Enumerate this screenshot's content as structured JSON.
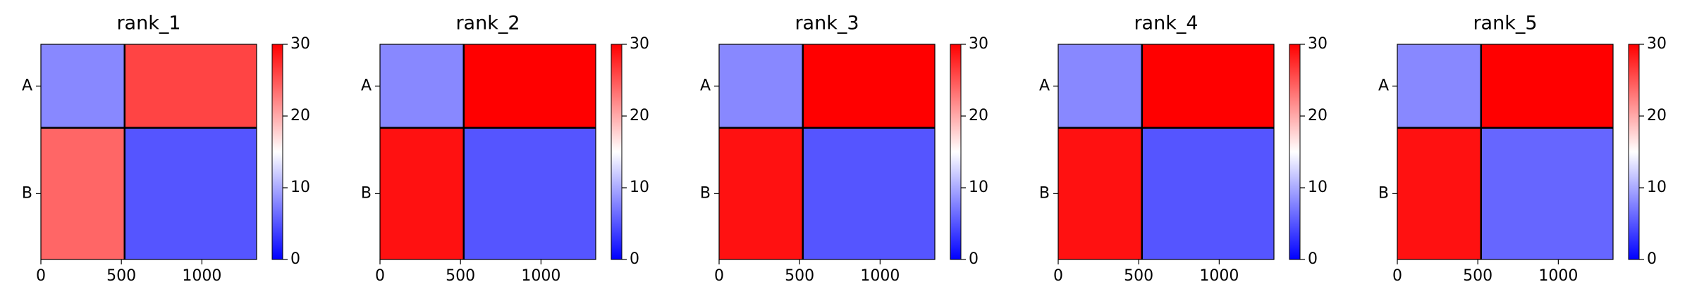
{
  "chart_data": [
    {
      "type": "heatmap",
      "title": "rank_1",
      "x_edges": [
        0,
        520,
        1340
      ],
      "y_edges": [
        0,
        520,
        1340
      ],
      "values": [
        [
          8,
          26
        ],
        [
          24,
          5
        ]
      ],
      "xlim": [
        0,
        1340
      ],
      "xticks": [
        0,
        500,
        1000
      ],
      "ylim": [
        1340,
        0
      ],
      "yticks": [
        {
          "value": 260,
          "label": "A"
        },
        {
          "value": 930,
          "label": "B"
        }
      ],
      "clim": [
        0,
        30
      ],
      "cticks": [
        0,
        10,
        20,
        30
      ],
      "cmap": [
        "#0000ff",
        "#ffffff",
        "#ff0000"
      ]
    },
    {
      "type": "heatmap",
      "title": "rank_2",
      "x_edges": [
        0,
        520,
        1340
      ],
      "y_edges": [
        0,
        520,
        1340
      ],
      "values": [
        [
          8,
          30
        ],
        [
          29,
          5
        ]
      ],
      "xlim": [
        0,
        1340
      ],
      "xticks": [
        0,
        500,
        1000
      ],
      "ylim": [
        1340,
        0
      ],
      "yticks": [
        {
          "value": 260,
          "label": "A"
        },
        {
          "value": 930,
          "label": "B"
        }
      ],
      "clim": [
        0,
        30
      ],
      "cticks": [
        0,
        10,
        20,
        30
      ],
      "cmap": [
        "#0000ff",
        "#ffffff",
        "#ff0000"
      ]
    },
    {
      "type": "heatmap",
      "title": "rank_3",
      "x_edges": [
        0,
        520,
        1340
      ],
      "y_edges": [
        0,
        520,
        1340
      ],
      "values": [
        [
          8,
          30
        ],
        [
          29,
          5
        ]
      ],
      "xlim": [
        0,
        1340
      ],
      "xticks": [
        0,
        500,
        1000
      ],
      "ylim": [
        1340,
        0
      ],
      "yticks": [
        {
          "value": 260,
          "label": "A"
        },
        {
          "value": 930,
          "label": "B"
        }
      ],
      "clim": [
        0,
        30
      ],
      "cticks": [
        0,
        10,
        20,
        30
      ],
      "cmap": [
        "#0000ff",
        "#ffffff",
        "#ff0000"
      ]
    },
    {
      "type": "heatmap",
      "title": "rank_4",
      "x_edges": [
        0,
        520,
        1340
      ],
      "y_edges": [
        0,
        520,
        1340
      ],
      "values": [
        [
          8,
          30
        ],
        [
          29,
          5
        ]
      ],
      "xlim": [
        0,
        1340
      ],
      "xticks": [
        0,
        500,
        1000
      ],
      "ylim": [
        1340,
        0
      ],
      "yticks": [
        {
          "value": 260,
          "label": "A"
        },
        {
          "value": 930,
          "label": "B"
        }
      ],
      "clim": [
        0,
        30
      ],
      "cticks": [
        0,
        10,
        20,
        30
      ],
      "cmap": [
        "#0000ff",
        "#ffffff",
        "#ff0000"
      ]
    },
    {
      "type": "heatmap",
      "title": "rank_5",
      "x_edges": [
        0,
        520,
        1340
      ],
      "y_edges": [
        0,
        520,
        1340
      ],
      "values": [
        [
          8,
          30
        ],
        [
          29,
          6
        ]
      ],
      "xlim": [
        0,
        1340
      ],
      "xticks": [
        0,
        500,
        1000
      ],
      "ylim": [
        1340,
        0
      ],
      "yticks": [
        {
          "value": 260,
          "label": "A"
        },
        {
          "value": 930,
          "label": "B"
        }
      ],
      "clim": [
        0,
        30
      ],
      "cticks": [
        0,
        10,
        20,
        30
      ],
      "cmap": [
        "#0000ff",
        "#ffffff",
        "#ff0000"
      ]
    }
  ]
}
